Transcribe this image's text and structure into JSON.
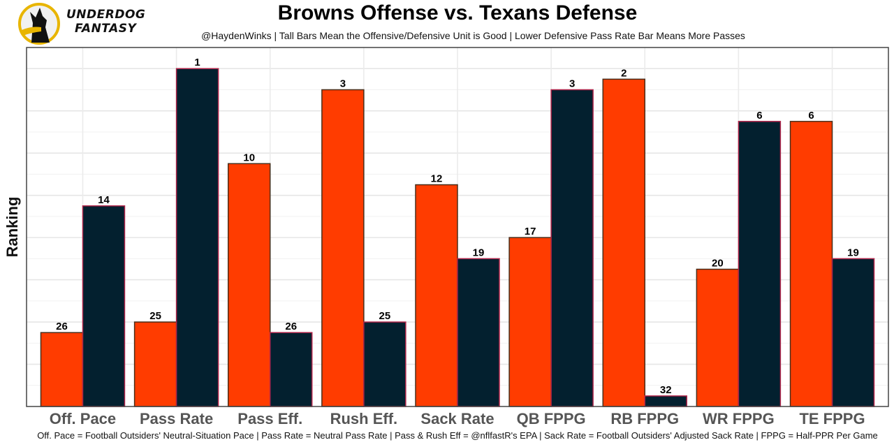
{
  "brand": {
    "logo_line1": "UNDERDOG",
    "logo_line2": "FANTASY",
    "logo_icon": "dog-silhouette-icon",
    "accent_color": "#E8B500"
  },
  "header": {
    "title": "Browns Offense vs. Texans Defense",
    "subtitle": "@HaydenWinks | Tall Bars Mean the Offensive/Defensive Unit is Good | Lower Defensive Pass Rate Bar Means More Passes"
  },
  "footer": {
    "caption": "Off. Pace = Football Outsiders' Neutral-Situation Pace | Pass Rate = Neutral Pass Rate | Pass & Rush Eff = @nflfastR's EPA | Sack Rate = Football Outsiders' Adjusted Sack Rate | FPPG = Half-PPR Per Game"
  },
  "chart_data": {
    "type": "bar",
    "title": "Browns Offense vs. Texans Defense",
    "xlabel": "",
    "ylabel": "Ranking",
    "bar_height_rule": "height = 33 - rank (rank 1 tallest, rank 32 shortest)",
    "ylim": [
      0,
      34
    ],
    "grid": true,
    "legend": "none",
    "categories": [
      "Off. Pace",
      "Pass Rate",
      "Pass Eff.",
      "Rush Eff.",
      "Sack Rate",
      "QB FPPG",
      "RB FPPG",
      "WR FPPG",
      "TE FPPG"
    ],
    "series": [
      {
        "name": "Browns Offense",
        "color": "#FF3C00",
        "edge": "#4a2e1a",
        "values": [
          26,
          25,
          10,
          3,
          12,
          17,
          2,
          20,
          6
        ]
      },
      {
        "name": "Texans Defense",
        "color": "#03202F",
        "edge": "#B0254A",
        "values": [
          14,
          1,
          26,
          25,
          19,
          3,
          32,
          6,
          19
        ]
      }
    ]
  }
}
